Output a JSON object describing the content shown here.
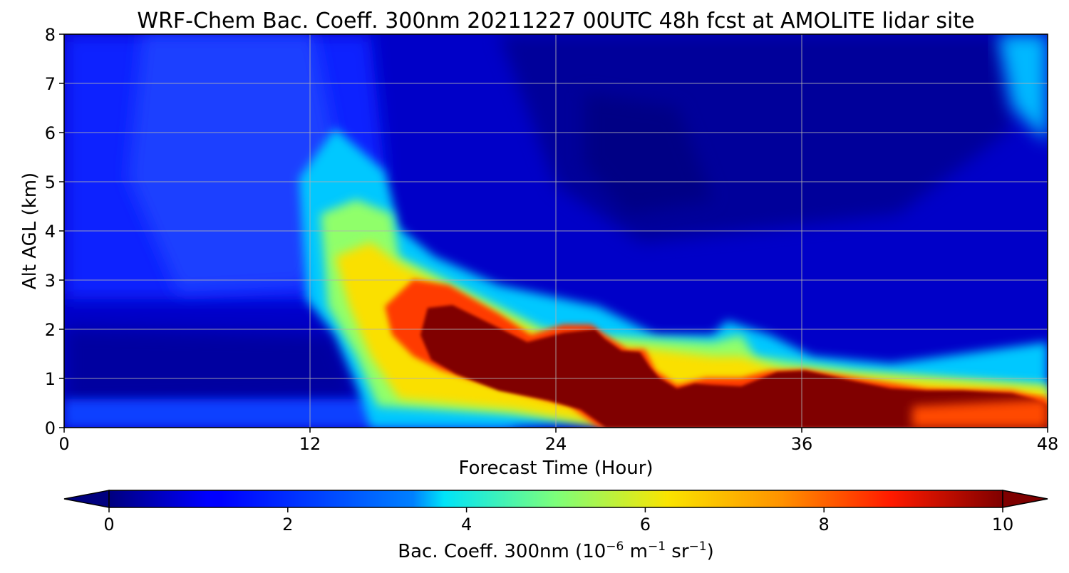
{
  "chart_data": {
    "type": "heatmap",
    "title": "WRF-Chem Bac. Coeff. 300nm  20211227 00UTC 48h fcst at AMOLITE lidar site",
    "xlabel": "Forecast Time (Hour)",
    "ylabel": "Alt AGL (km)",
    "xlim": [
      0,
      48
    ],
    "ylim": [
      0,
      8
    ],
    "xticks": [
      "0",
      "12",
      "24",
      "36",
      "48"
    ],
    "yticks": [
      "0",
      "1",
      "2",
      "3",
      "4",
      "5",
      "6",
      "7",
      "8"
    ],
    "grid": true,
    "colormap": "jet",
    "colorbar": {
      "label_text": "Bac. Coeff. 300nm  (10",
      "label_exp1": "−6",
      "label_mid": " m",
      "label_exp2": "−1",
      "label_mid2": " sr",
      "label_exp3": "−1",
      "label_end": ")",
      "range": [
        0,
        10
      ],
      "ticks": [
        "0",
        "2",
        "4",
        "6",
        "8",
        "10"
      ],
      "extend": "both",
      "orientation": "horizontal"
    },
    "layer_top_km": [
      {
        "x": 0,
        "y": 0.0
      },
      {
        "x": 12,
        "y": 0.0
      },
      {
        "x": 16,
        "y": 3.2
      },
      {
        "x": 18,
        "y": 2.9
      },
      {
        "x": 21,
        "y": 2.2
      },
      {
        "x": 23,
        "y": 1.8
      },
      {
        "x": 24,
        "y": 1.85
      },
      {
        "x": 25,
        "y": 2.15
      },
      {
        "x": 26,
        "y": 2.1
      },
      {
        "x": 27,
        "y": 1.7
      },
      {
        "x": 28.5,
        "y": 1.55
      },
      {
        "x": 29.5,
        "y": 1.0
      },
      {
        "x": 30.5,
        "y": 0.85
      },
      {
        "x": 32,
        "y": 1.0
      },
      {
        "x": 33,
        "y": 1.25
      },
      {
        "x": 35,
        "y": 1.2
      },
      {
        "x": 36,
        "y": 1.15
      },
      {
        "x": 38,
        "y": 1.0
      },
      {
        "x": 40,
        "y": 0.85
      },
      {
        "x": 44,
        "y": 0.75
      },
      {
        "x": 46,
        "y": 0.75
      },
      {
        "x": 48,
        "y": 0.6
      }
    ]
  }
}
